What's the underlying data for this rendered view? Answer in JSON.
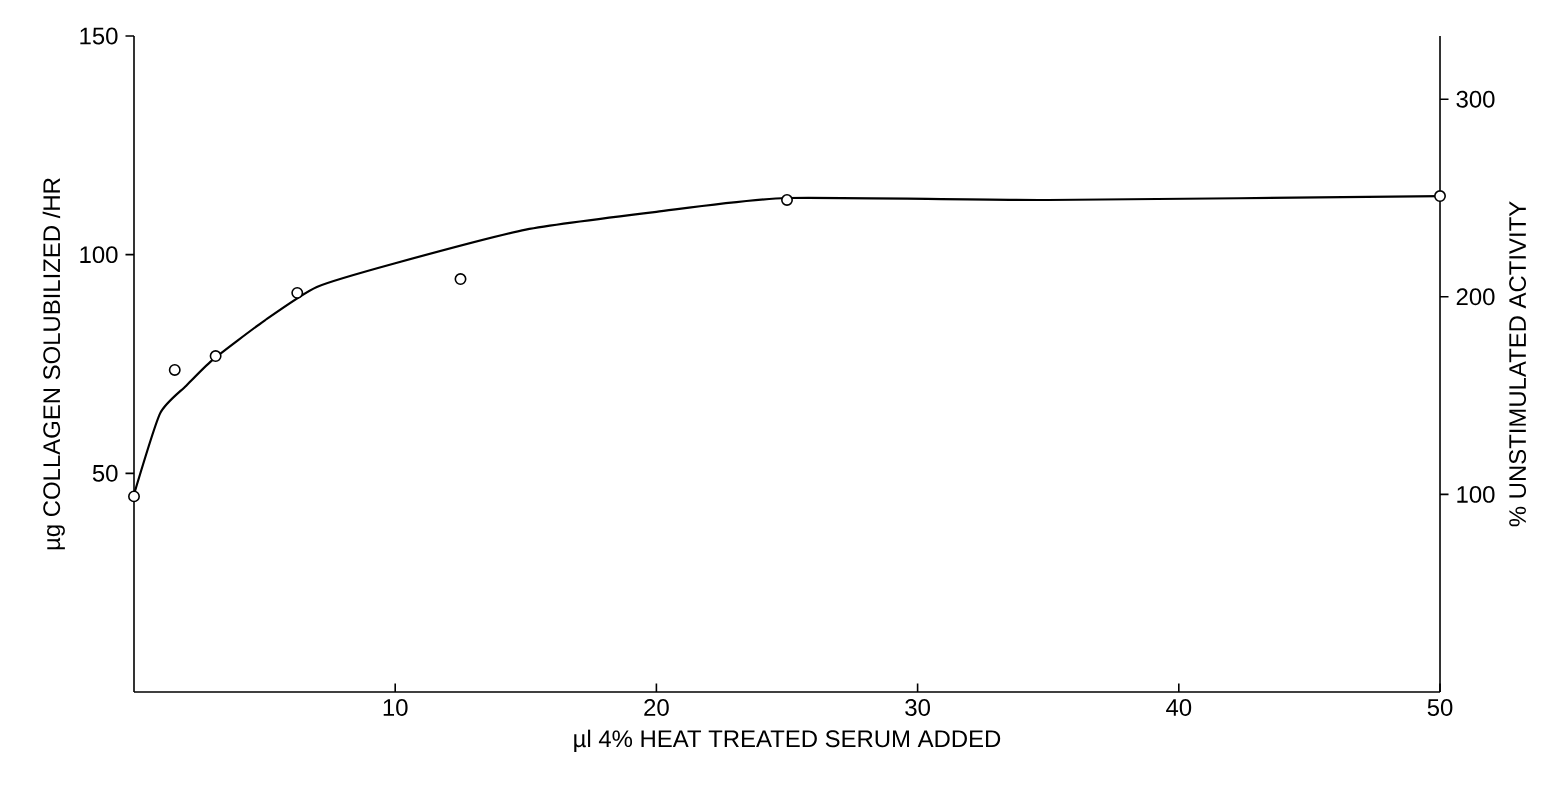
{
  "chart_data": {
    "type": "scatter",
    "xlabel": "µl 4% HEAT TREATED SERUM ADDED",
    "ylabel": "µg COLLAGEN SOLUBILIZED /HR",
    "y2label": "% UNSTIMULATED ACTIVITY",
    "xlim": [
      0,
      50
    ],
    "xticks": [
      10,
      20,
      30,
      40,
      50
    ],
    "ylim": [
      0,
      150
    ],
    "yticks": [
      50,
      100,
      150
    ],
    "y2lim": [
      0,
      332
    ],
    "y2ticks": [
      100,
      200,
      300
    ],
    "series": [
      {
        "axis": "y2",
        "color": "#000000",
        "marker": "circle",
        "x": [
          0,
          1.56,
          3.125,
          6.25,
          12.5,
          25,
          50
        ],
        "values": [
          99,
          163,
          170,
          202,
          209,
          249,
          251
        ]
      },
      {
        "type": "line",
        "axis": "y2",
        "color": "#000000",
        "marker": "none",
        "x": [
          0,
          1,
          2,
          3,
          5,
          7,
          10,
          15,
          20,
          25,
          35,
          50
        ],
        "values": [
          100,
          141,
          155,
          168,
          188,
          205,
          217,
          234,
          243,
          250,
          249,
          251
        ]
      }
    ]
  }
}
